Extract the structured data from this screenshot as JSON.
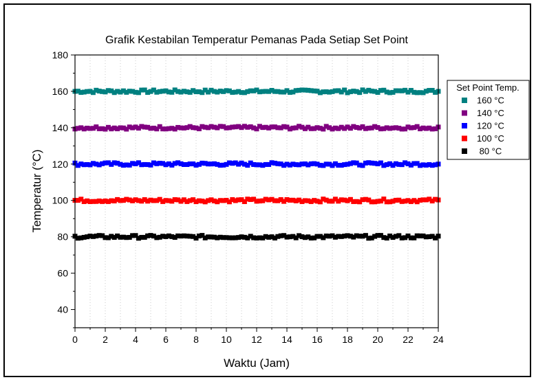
{
  "chart_data": {
    "type": "scatter",
    "title": "Grafik Kestabilan Temperatur Pemanas Pada Setiap Set Point",
    "xlabel": "Waktu (Jam)",
    "ylabel": "Temperatur (°C)",
    "xlim": [
      0,
      24
    ],
    "ylim": [
      30,
      180
    ],
    "xticks": [
      0,
      2,
      4,
      6,
      8,
      10,
      12,
      14,
      16,
      18,
      20,
      22,
      24
    ],
    "yticks": [
      40,
      60,
      80,
      100,
      120,
      140,
      160,
      180
    ],
    "grid": "vertical-dotted",
    "legend": {
      "title": "Set Point Temp.",
      "position": "right"
    },
    "series": [
      {
        "name": "160 °C",
        "color": "#008080",
        "setpoint": 160
      },
      {
        "name": "140 °C",
        "color": "#800080",
        "setpoint": 140
      },
      {
        "name": "120 °C",
        "color": "#0000ff",
        "setpoint": 120
      },
      {
        "name": "100 °C",
        "color": "#ff0000",
        "setpoint": 100
      },
      {
        "name": " 80 °C",
        "color": "#000000",
        "setpoint": 80
      }
    ]
  }
}
